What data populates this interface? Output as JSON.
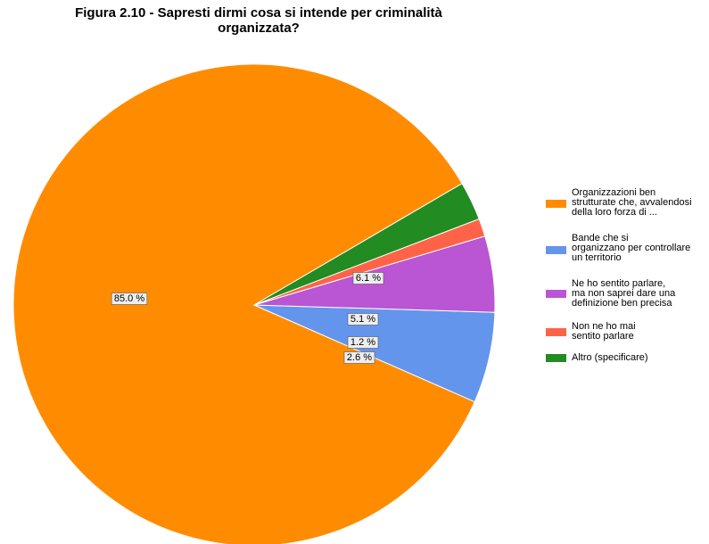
{
  "chart_data": {
    "type": "pie",
    "title_lines": [
      "Figura 2.10 - Sapresti dirmi cosa si intende per criminalità",
      "organizzata?"
    ],
    "slices": [
      {
        "label": "Organizzazioni ben strutturate che,  avvalendosi della loro forza di ...",
        "value": 85.0,
        "value_label": "85.0 %",
        "color": "#FF8C00"
      },
      {
        "label": "Bande che si organizzano per controllare un territorio",
        "value": 6.1,
        "value_label": "6.1 %",
        "color": "#6495ED"
      },
      {
        "label": "Ne ho sentito parlare, ma non saprei dare una definizione ben precisa",
        "value": 5.1,
        "value_label": "5.1 %",
        "color": "#BA55D3"
      },
      {
        "label": "Non ne ho mai sentito parlare",
        "value": 1.2,
        "value_label": "1.2 %",
        "color": "#FF6347"
      },
      {
        "label": "Altro (specificare)",
        "value": 2.6,
        "value_label": "2.6 %",
        "color": "#228B22"
      }
    ],
    "legend_position": "right"
  },
  "legend": {
    "items": [
      {
        "text": "Organizzazioni ben\nstrutturate che,  avvalendosi\ndella loro forza di ...",
        "color": "#FF8C00"
      },
      {
        "text": "Bande che si\norganizzano per controllare\nun territorio",
        "color": "#6495ED"
      },
      {
        "text": "Ne ho sentito parlare,\nma non saprei dare una\ndefinizione ben precisa",
        "color": "#BA55D3"
      },
      {
        "text": "Non ne ho mai\nsentito parlare",
        "color": "#FF6347"
      },
      {
        "text": "Altro (specificare)",
        "color": "#228B22"
      }
    ]
  }
}
